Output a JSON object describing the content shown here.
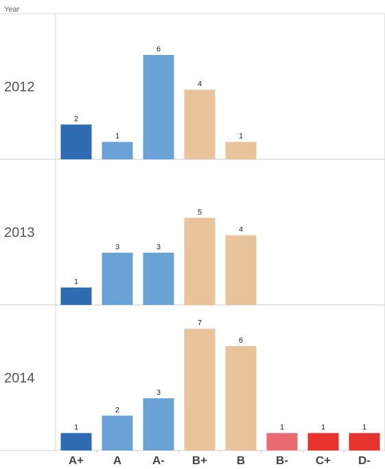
{
  "chart_data": {
    "type": "bar",
    "row_header": "Year",
    "categories": [
      "A+",
      "A",
      "A-",
      "B+",
      "B",
      "B-",
      "C+",
      "D-"
    ],
    "category_colors": [
      "#2e6bb2",
      "#6aa2d6",
      "#6aa2d6",
      "#e9c39b",
      "#e9c39b",
      "#ea6c72",
      "#e8322e",
      "#e8322e"
    ],
    "ylim": [
      0,
      7.5
    ],
    "panels": [
      {
        "year": "2012",
        "values": [
          2,
          1,
          6,
          4,
          1,
          null,
          null,
          null
        ]
      },
      {
        "year": "2013",
        "values": [
          1,
          3,
          3,
          5,
          4,
          null,
          null,
          null
        ]
      },
      {
        "year": "2014",
        "values": [
          1,
          2,
          3,
          7,
          6,
          1,
          1,
          1
        ]
      }
    ]
  }
}
